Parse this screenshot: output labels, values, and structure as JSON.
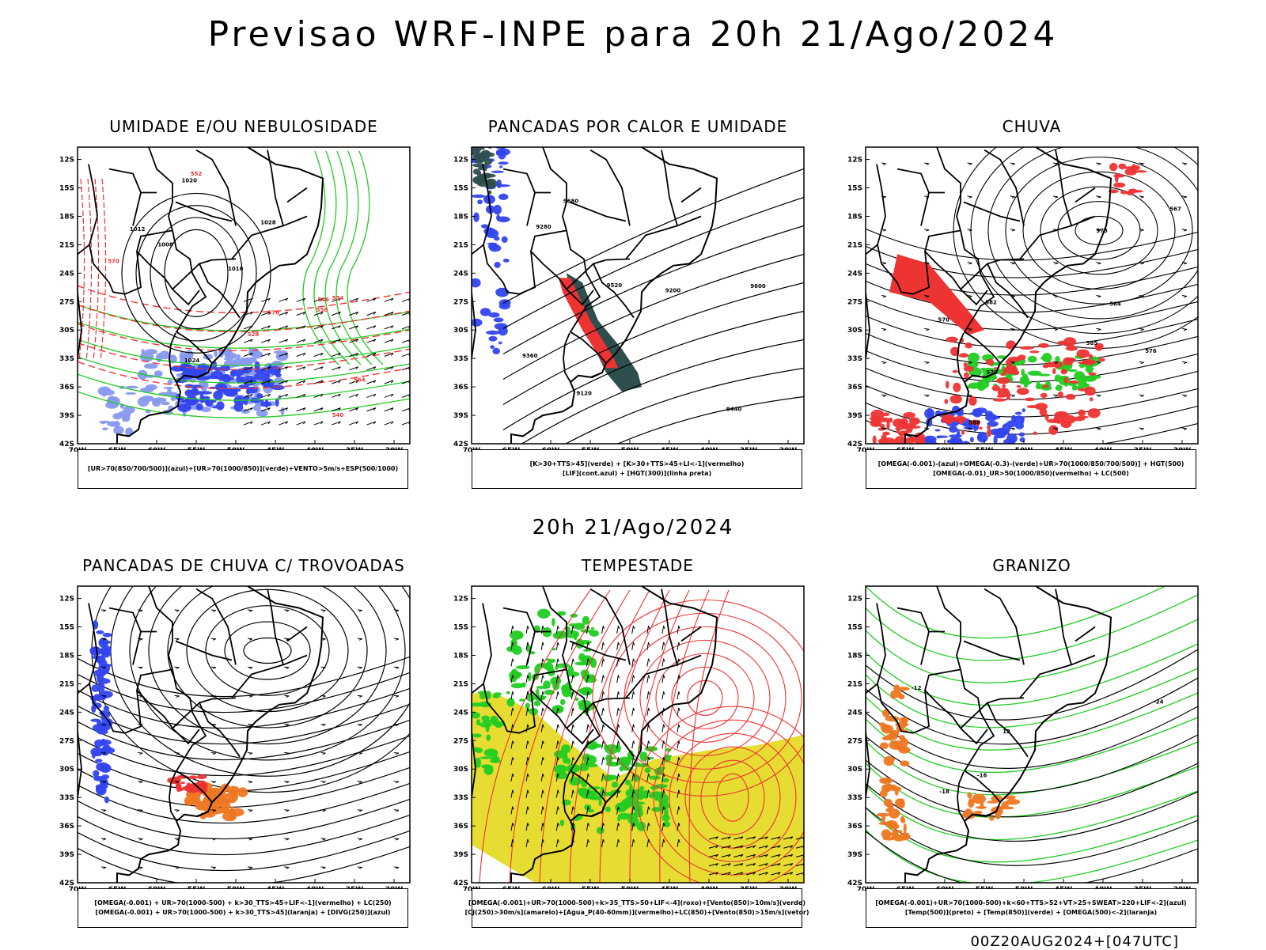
{
  "header": {
    "title": "Previsao WRF-INPE  para 20h 21/Ago/2024",
    "mid_title": "20h 21/Ago/2024",
    "footer_stamp": "00Z20AUG2024+[047UTC]"
  },
  "axes": {
    "lat_labels": [
      "12S",
      "15S",
      "18S",
      "21S",
      "24S",
      "27S",
      "30S",
      "33S",
      "36S",
      "39S",
      "42S"
    ],
    "lon_labels": [
      "70W",
      "65W",
      "60W",
      "55W",
      "50W",
      "45W",
      "40W",
      "35W",
      "30W"
    ]
  },
  "colors": {
    "red": "#ee3333",
    "green": "#22cc22",
    "blue": "#3344ee",
    "lightblue": "#8899ee",
    "orange": "#ee7722",
    "yellow": "#e6dc32",
    "darkteal": "#2f4f4f",
    "black": "#000000"
  },
  "panels": [
    {
      "id": "umidade",
      "title": "UMIDADE E/OU NEBULOSIDADE",
      "legend": [
        "[UR>70(850/700/500)](azul)+[UR>70(1000/850)](verde)+VENTO>5m/s+ESP(500/1000)"
      ],
      "contour_labels": [
        "1008",
        "1012",
        "1016",
        "1020",
        "1024",
        "1028",
        "570",
        "576",
        "564",
        "558",
        "552",
        "546",
        "540",
        "534",
        "528"
      ]
    },
    {
      "id": "pancadas-calor",
      "title": "PANCADAS POR CALOR E UMIDADE",
      "legend": [
        "[K>30+TTS>45](verde) + [K>30+TTS>45+LI<-1](vermelho)",
        "[LIF](cont.azul) + [HGT(300)](linha preta)"
      ],
      "contour_labels": [
        "9680",
        "9600",
        "9520",
        "9440",
        "9360",
        "9280",
        "9200",
        "9120"
      ]
    },
    {
      "id": "chuva",
      "title": "CHUVA",
      "legend": [
        "[OMEGA(-0.001)-(azul)+OMEGA(-0.3)-(verde)+UR>70(1000/850/700/500)] + HGT(500)",
        "[OMEGA(-0.01)_UR>50(1000/850)(vermelho) + LC(500)"
      ],
      "contour_labels": [
        "588",
        "585",
        "582",
        "579",
        "576",
        "573",
        "570",
        "567",
        "564"
      ]
    },
    {
      "id": "trovoadas",
      "title": "PANCADAS DE CHUVA C/ TROVOADAS",
      "legend": [
        "[OMEGA(-0.001) + UR>70(1000-500) + k>30_TTS>45+LIF<-1](vermelho) + LC(250)",
        "[OMEGA(-0.001) + UR>70(1000-500) + k>30_TTS>45](laranja) + [DIVG(250)](azul)"
      ],
      "contour_labels": []
    },
    {
      "id": "tempestade",
      "title": "TEMPESTADE",
      "legend": [
        "[OMEGA(-0.001)+UR>70(1000-500)+k>35_TTS>50+LIF<-4](roxo)+[Vento(850)>10m/s](verde)",
        "[CJ(250)>30m/s](amarelo)+[Agua_P(40-60mm)](vermelho)+LC(850)+[Vento(850)>15m/s](vetor)"
      ],
      "contour_labels": []
    },
    {
      "id": "granizo",
      "title": "GRANIZO",
      "legend": [
        "[OMEGA(-0.001)+UR>70(1000-500)+k<60+TTS>52+VT>25+SWEAT>220+LIF<-2](azul)",
        "[Temp(500)](preto) + [Temp(850)](verde) + [OMEGA(500)<-2](laranja)"
      ],
      "contour_labels": [
        "12",
        "-12",
        "-18",
        "-24",
        "-16"
      ]
    }
  ]
}
